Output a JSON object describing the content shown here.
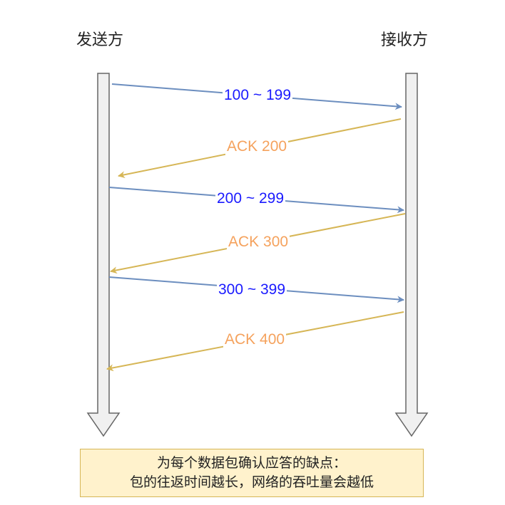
{
  "parties": {
    "sender": "发送方",
    "receiver": "接收方"
  },
  "messages": [
    {
      "label": "100 ~ 199",
      "direction": "sender-to-receiver",
      "kind": "data"
    },
    {
      "label": "ACK 200",
      "direction": "receiver-to-sender",
      "kind": "ack"
    },
    {
      "label": "200 ~ 299",
      "direction": "sender-to-receiver",
      "kind": "data"
    },
    {
      "label": "ACK 300",
      "direction": "receiver-to-sender",
      "kind": "ack"
    },
    {
      "label": "300 ~ 399",
      "direction": "sender-to-receiver",
      "kind": "data"
    },
    {
      "label": "ACK 400",
      "direction": "receiver-to-sender",
      "kind": "ack"
    }
  ],
  "note": {
    "line1": "为每个数据包确认应答的缺点：",
    "line2": "包的往返时间越长，网络的吞吐量会越低"
  },
  "colors": {
    "data_line": "#6c8ebf",
    "data_text": "#1a1aff",
    "ack_line": "#d6b656",
    "ack_text": "#f5a25d",
    "lifeline_fill": "#f0f0f0",
    "lifeline_stroke": "#666666",
    "note_fill": "#fff2cc",
    "note_stroke": "#d6b656"
  }
}
